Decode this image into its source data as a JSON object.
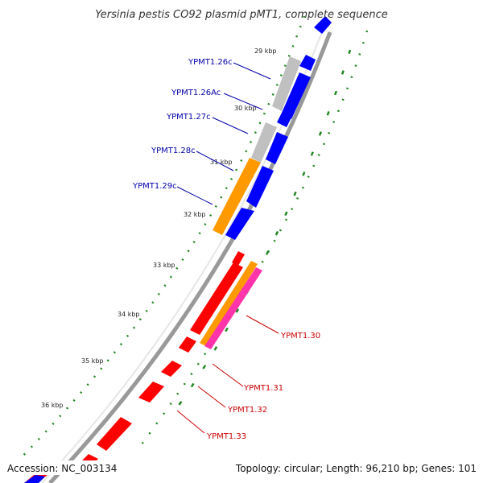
{
  "title": "Yersinia pestis CO92 plasmid pMT1, complete sequence",
  "accession": "Accession: NC_003134",
  "topology": "Topology: circular; Length: 96,210 bp; Genes: 101",
  "ticks": [
    "29 kbp",
    "30 kbp",
    "31 kbp",
    "32 kbp",
    "33 kbp",
    "34 kbp",
    "35 kbp",
    "36 kbp"
  ],
  "reverse_gene_labels": [
    "YPMT1.26c",
    "YPMT1.26Ac",
    "YPMT1.27c",
    "YPMT1.28c",
    "YPMT1.29c"
  ],
  "forward_gene_labels": [
    "YPMT1.30",
    "YPMT1.31",
    "YPMT1.32",
    "YPMT1.33"
  ],
  "colors": {
    "reverse_cds": "#0000ff",
    "forward_cds": "#ff0000",
    "reverse_label": "#0000aa",
    "forward_label": "#cc0000",
    "gene_gray": "#c0c0c0",
    "gene_orange": "#ff9900",
    "gene_pink": "#ff33aa",
    "gc_dots": "#228822",
    "backbone": "#999999"
  }
}
